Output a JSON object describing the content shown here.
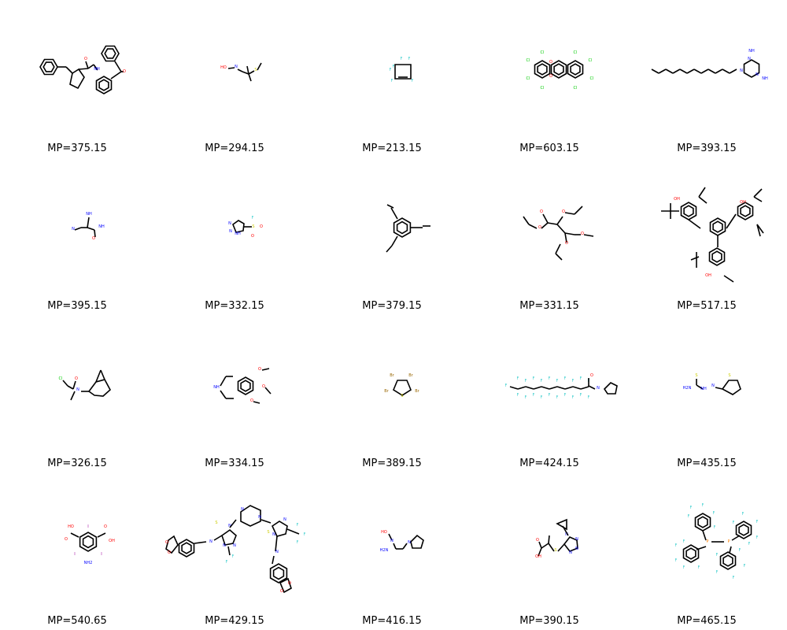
{
  "grid": {
    "cells": [
      {
        "mp": "MP=375.15",
        "molecule": "n-benzylprolinamide-benzoylphenyl"
      },
      {
        "mp": "MP=294.15",
        "molecule": "oxime-thioether"
      },
      {
        "mp": "MP=213.15",
        "molecule": "hexafluorocyclobutene"
      },
      {
        "mp": "MP=603.15",
        "molecule": "octachlorodibenzodioxin"
      },
      {
        "mp": "MP=393.15",
        "molecule": "alkyl-diaminotriazine"
      },
      {
        "mp": "MP=395.15",
        "molecule": "cyano-amino-acetamide"
      },
      {
        "mp": "MP=332.15",
        "molecule": "triazole-sulfonyl-fluoride"
      },
      {
        "mp": "MP=379.15",
        "molecule": "triethynylbenzene"
      },
      {
        "mp": "MP=331.15",
        "molecule": "ethenetetracarboxylate-ester"
      },
      {
        "mp": "MP=517.15",
        "molecule": "tris-tert-butylhydroxybenzyl-mesitylene"
      },
      {
        "mp": "MP=326.15",
        "molecule": "chloroacetamide-adamantyl"
      },
      {
        "mp": "MP=334.15",
        "molecule": "trimethoxy-benzazepine"
      },
      {
        "mp": "MP=389.15",
        "molecule": "tetrabromothiophene"
      },
      {
        "mp": "MP=424.15",
        "molecule": "perfluoroacyl-imidazole"
      },
      {
        "mp": "MP=435.15",
        "molecule": "thiophene-thiosemicarbazone"
      },
      {
        "mp": "MP=540.65",
        "molecule": "amino-diiodo-isophthalic-acid"
      },
      {
        "mp": "MP=429.15",
        "molecule": "bis-triazolethione-piperazine"
      },
      {
        "mp": "MP=416.15",
        "molecule": "pyrrolidinyl-amidoxime"
      },
      {
        "mp": "MP=390.15",
        "molecule": "cyclopropyl-tetrazolyl-thio-propanoic-acid"
      },
      {
        "mp": "MP=465.15",
        "molecule": "bis-pentafluorophenyl-phosphino-ethane"
      }
    ]
  }
}
